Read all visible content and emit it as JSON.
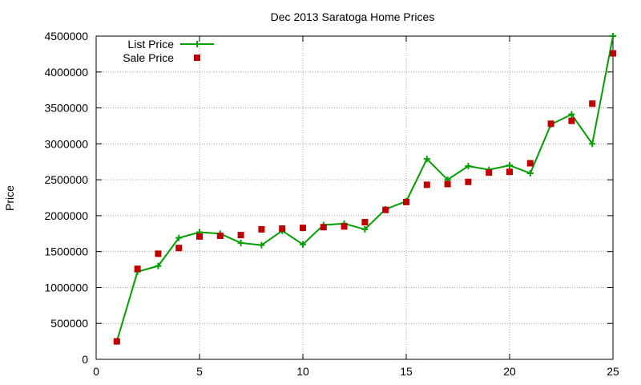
{
  "chart_data": {
    "type": "line",
    "title": "Dec 2013 Saratoga Home Prices",
    "xlabel": "",
    "ylabel": "Price",
    "xlim": [
      0,
      25
    ],
    "ylim": [
      0,
      4500000
    ],
    "xticks": [
      0,
      5,
      10,
      15,
      20,
      25
    ],
    "yticks": [
      0,
      500000,
      1000000,
      1500000,
      2000000,
      2500000,
      3000000,
      3500000,
      4000000,
      4500000
    ],
    "grid": true,
    "legend_position": "top-left",
    "series": [
      {
        "name": "List Price",
        "style": "line+crosses",
        "color": "#00a000",
        "x": [
          1,
          2,
          3,
          4,
          5,
          6,
          7,
          8,
          9,
          10,
          11,
          12,
          13,
          14,
          15,
          16,
          17,
          18,
          19,
          20,
          21,
          22,
          23,
          24,
          25
        ],
        "values": [
          250000,
          1220000,
          1300000,
          1690000,
          1770000,
          1750000,
          1620000,
          1590000,
          1790000,
          1600000,
          1870000,
          1890000,
          1810000,
          2090000,
          2200000,
          2790000,
          2500000,
          2690000,
          2640000,
          2700000,
          2590000,
          3270000,
          3410000,
          3000000,
          4500000
        ]
      },
      {
        "name": "Sale Price",
        "style": "squares",
        "color": "#c00000",
        "x": [
          1,
          2,
          3,
          4,
          5,
          6,
          7,
          8,
          9,
          10,
          11,
          12,
          13,
          14,
          15,
          16,
          17,
          18,
          19,
          20,
          21,
          22,
          23,
          24,
          25
        ],
        "values": [
          250000,
          1260000,
          1470000,
          1550000,
          1710000,
          1720000,
          1730000,
          1810000,
          1820000,
          1830000,
          1840000,
          1850000,
          1910000,
          2080000,
          2190000,
          2430000,
          2440000,
          2470000,
          2600000,
          2610000,
          2730000,
          3280000,
          3320000,
          3560000,
          4260000
        ]
      }
    ]
  }
}
